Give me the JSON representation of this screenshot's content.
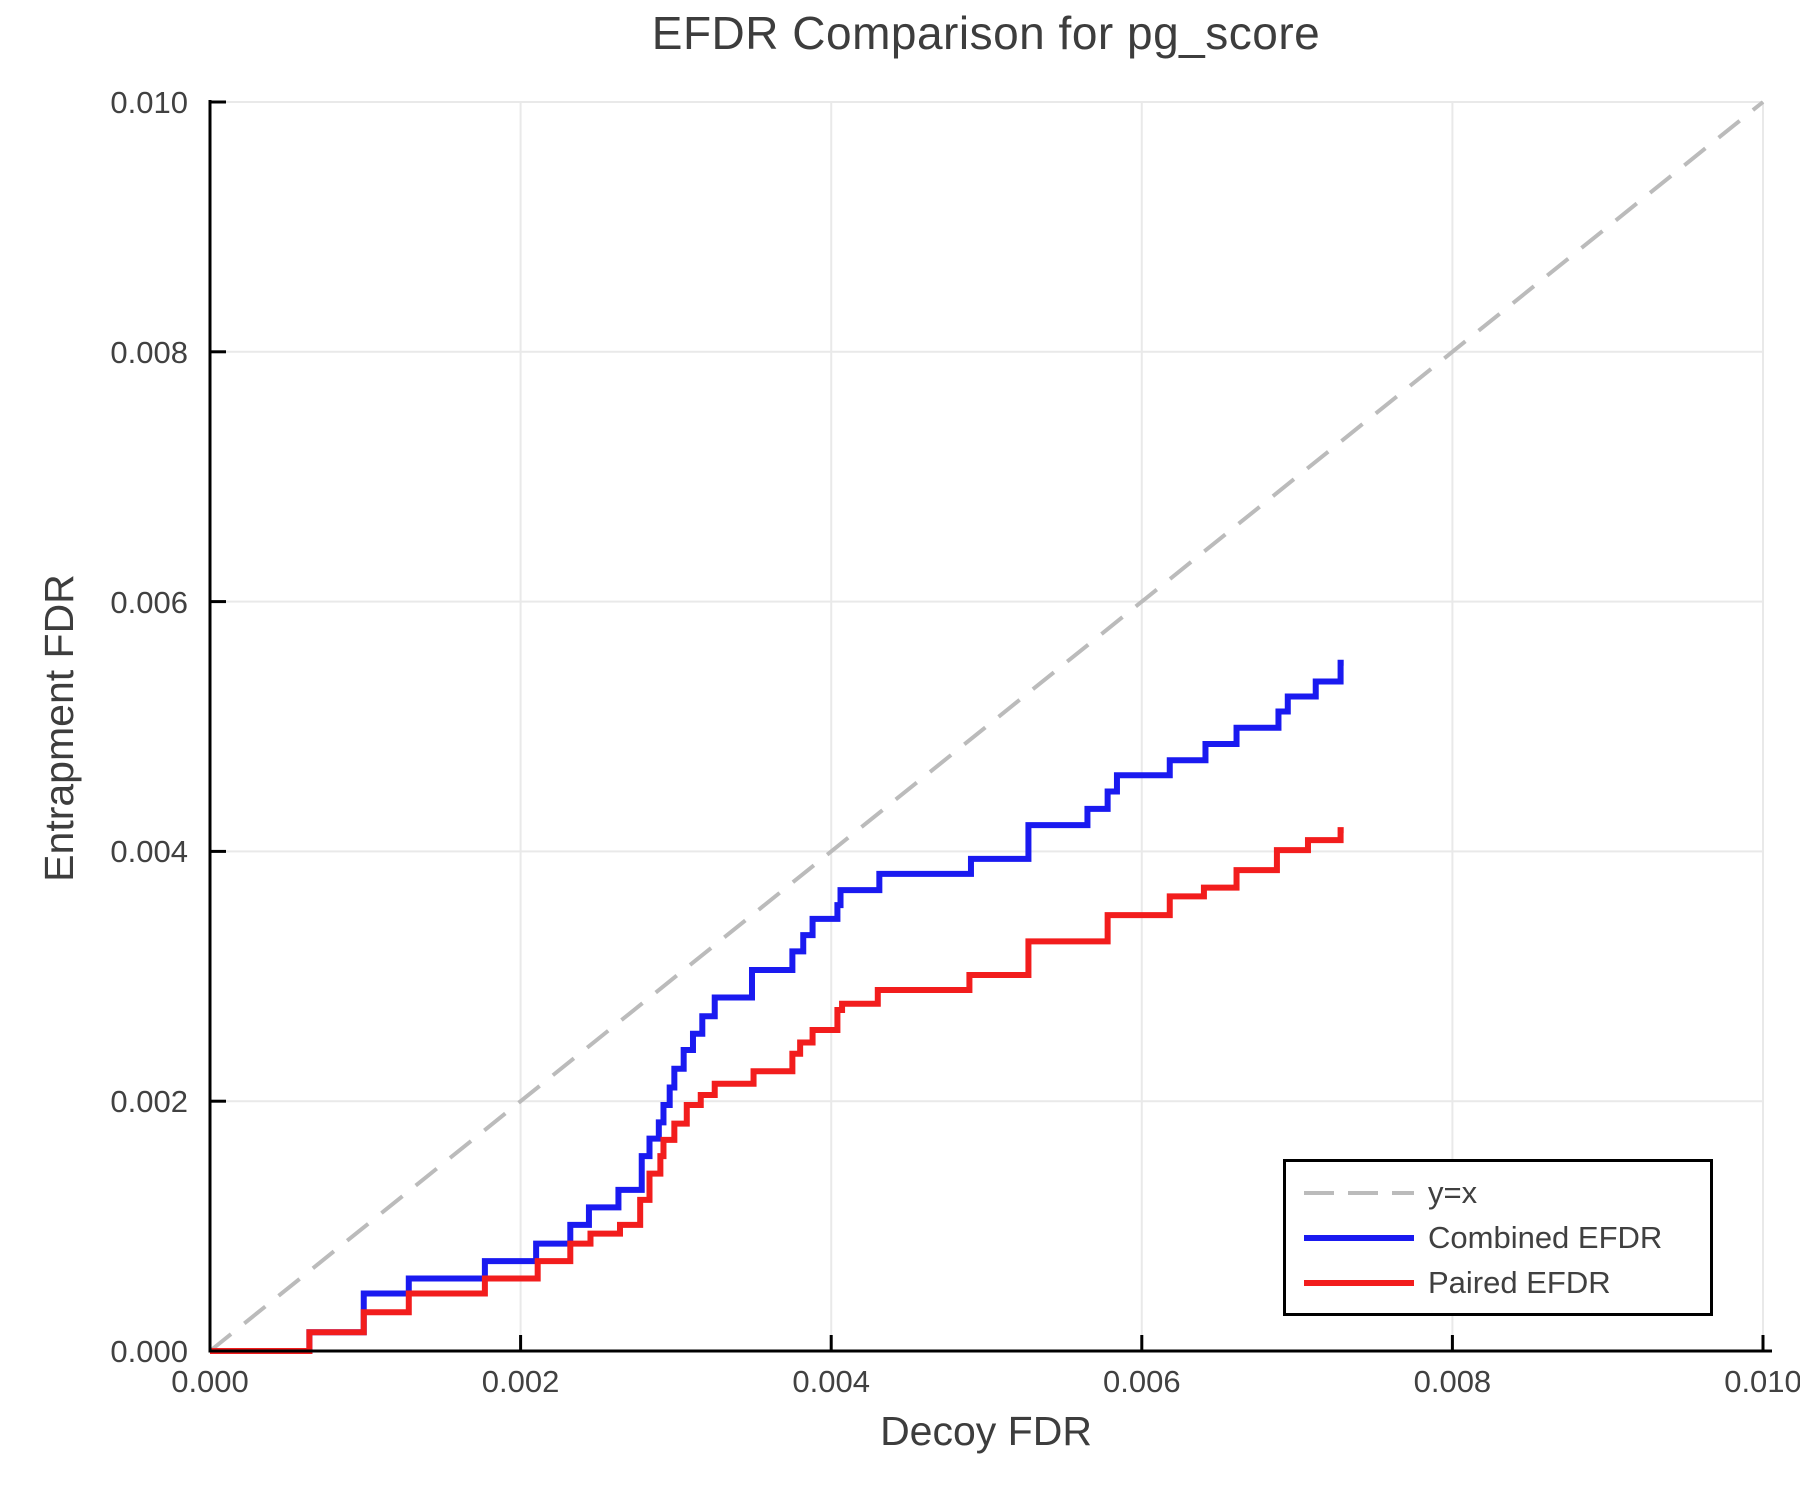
{
  "chart": {
    "title": "EFDR Comparison for pg_score",
    "xlabel": "Decoy FDR",
    "ylabel": "Entrapment FDR"
  },
  "colors": {
    "combined": "#1a1af0",
    "paired": "#f21d1d",
    "reference": "#bbbbbb",
    "grid": "#e9e9e9",
    "spine": "#000000",
    "text": "#3d3d3d"
  },
  "chart_data": {
    "type": "line",
    "subtype": "step-post",
    "title": "EFDR Comparison for pg_score",
    "xlabel": "Decoy FDR",
    "ylabel": "Entrapment FDR",
    "xlim": [
      0.0,
      0.01
    ],
    "ylim": [
      0.0,
      0.01
    ],
    "grid": true,
    "legend_position": "lower right",
    "x_ticks": [
      0.0,
      0.002,
      0.004,
      0.006,
      0.008,
      0.01
    ],
    "x_tick_labels": [
      "0.000",
      "0.002",
      "0.004",
      "0.006",
      "0.008",
      "0.010"
    ],
    "y_ticks": [
      0.0,
      0.002,
      0.004,
      0.006,
      0.008,
      0.01
    ],
    "y_tick_labels": [
      "0.000",
      "0.002",
      "0.004",
      "0.006",
      "0.008",
      "0.010"
    ],
    "series": [
      {
        "name": "y=x",
        "role": "reference-line",
        "style": "dashed",
        "color": "#bbbbbb",
        "points": [
          [
            0.0,
            0.0
          ],
          [
            0.01,
            0.01
          ]
        ]
      },
      {
        "name": "Combined EFDR",
        "role": "data",
        "style": "solid",
        "color": "#1a1af0",
        "points": [
          [
            0.0,
            0.0
          ],
          [
            0.00064,
            0.00015
          ],
          [
            0.00099,
            0.00046
          ],
          [
            0.00128,
            0.00058
          ],
          [
            0.00177,
            0.00072
          ],
          [
            0.0021,
            0.00086
          ],
          [
            0.00232,
            0.00101
          ],
          [
            0.00244,
            0.00115
          ],
          [
            0.00263,
            0.00129
          ],
          [
            0.00278,
            0.00156
          ],
          [
            0.00283,
            0.0017
          ],
          [
            0.00289,
            0.00183
          ],
          [
            0.00292,
            0.00197
          ],
          [
            0.00296,
            0.00211
          ],
          [
            0.00299,
            0.00226
          ],
          [
            0.00305,
            0.00241
          ],
          [
            0.00311,
            0.00254
          ],
          [
            0.00317,
            0.00268
          ],
          [
            0.00325,
            0.00283
          ],
          [
            0.00349,
            0.00305
          ],
          [
            0.00375,
            0.0032
          ],
          [
            0.00382,
            0.00333
          ],
          [
            0.00388,
            0.00346
          ],
          [
            0.00404,
            0.00357
          ],
          [
            0.00406,
            0.00369
          ],
          [
            0.00431,
            0.00382
          ],
          [
            0.0049,
            0.00394
          ],
          [
            0.00527,
            0.00421
          ],
          [
            0.00565,
            0.00434
          ],
          [
            0.00578,
            0.00448
          ],
          [
            0.00584,
            0.00461
          ],
          [
            0.00618,
            0.00473
          ],
          [
            0.00641,
            0.00486
          ],
          [
            0.00661,
            0.00499
          ],
          [
            0.00688,
            0.00512
          ],
          [
            0.00694,
            0.00524
          ],
          [
            0.00712,
            0.00536
          ],
          [
            0.00728,
            0.00551
          ],
          [
            0.0073,
            0.00551
          ]
        ]
      },
      {
        "name": "Paired EFDR",
        "role": "data",
        "style": "solid",
        "color": "#f21d1d",
        "points": [
          [
            0.0,
            0.0
          ],
          [
            0.00064,
            0.00015
          ],
          [
            0.00099,
            0.00031
          ],
          [
            0.00128,
            0.00046
          ],
          [
            0.00177,
            0.00058
          ],
          [
            0.00211,
            0.00072
          ],
          [
            0.00232,
            0.00086
          ],
          [
            0.00245,
            0.00094
          ],
          [
            0.00264,
            0.00101
          ],
          [
            0.00277,
            0.00121
          ],
          [
            0.00283,
            0.00142
          ],
          [
            0.0029,
            0.00156
          ],
          [
            0.00292,
            0.00169
          ],
          [
            0.00299,
            0.00182
          ],
          [
            0.00307,
            0.00197
          ],
          [
            0.00316,
            0.00205
          ],
          [
            0.00325,
            0.00214
          ],
          [
            0.0035,
            0.00224
          ],
          [
            0.00375,
            0.00238
          ],
          [
            0.0038,
            0.00247
          ],
          [
            0.00388,
            0.00257
          ],
          [
            0.00404,
            0.00273
          ],
          [
            0.00407,
            0.00278
          ],
          [
            0.0043,
            0.00289
          ],
          [
            0.00489,
            0.00301
          ],
          [
            0.00527,
            0.00328
          ],
          [
            0.00578,
            0.00349
          ],
          [
            0.00618,
            0.00364
          ],
          [
            0.0064,
            0.00371
          ],
          [
            0.00661,
            0.00385
          ],
          [
            0.00687,
            0.00401
          ],
          [
            0.00707,
            0.00409
          ],
          [
            0.00728,
            0.00417
          ],
          [
            0.0073,
            0.00417
          ]
        ]
      }
    ]
  }
}
